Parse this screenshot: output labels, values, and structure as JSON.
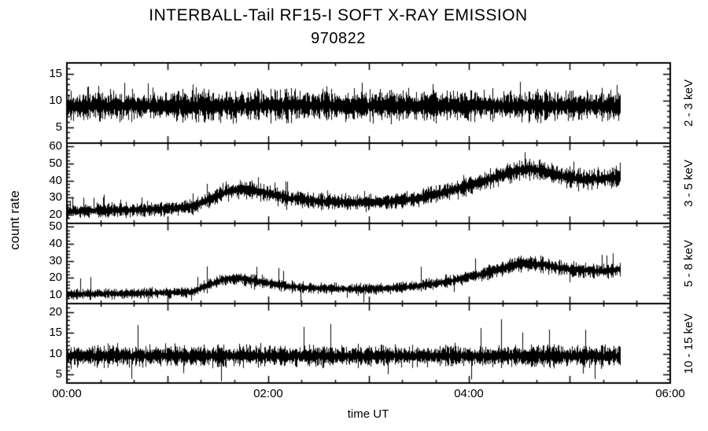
{
  "title": {
    "line1": "INTERBALL-Tail RF15-I SOFT X-RAY EMISSION",
    "line2": "970822"
  },
  "axes": {
    "ylabel": "count rate",
    "xlabel": "time UT",
    "x_range_hours": [
      0,
      6
    ],
    "x_labeled_hours": [
      0,
      2,
      4,
      6
    ],
    "x_tick_labels": [
      "00:00",
      "02:00",
      "04:00",
      "06:00"
    ],
    "data_x_range_hours": [
      0,
      5.5
    ]
  },
  "chart_data": [
    {
      "type": "line",
      "name": "2 - 3 keV count rate",
      "band": "2 - 3 keV",
      "ylim": [
        2,
        17
      ],
      "yticks": [
        5,
        10,
        15
      ],
      "mean_profile": {
        "t_hours": [
          0,
          5.5
        ],
        "value": [
          9,
          9
        ]
      },
      "noise_amp": 3.5,
      "amp_rel": 0,
      "spike_prob": 0.04,
      "spike_amp": 4.5,
      "seed": 11
    },
    {
      "type": "line",
      "name": "3 - 5 keV count rate",
      "band": "3 - 5 keV",
      "ylim": [
        15,
        62
      ],
      "yticks": [
        20,
        30,
        40,
        50,
        60
      ],
      "mean_profile": {
        "t_hours": [
          0,
          0.7,
          1.1,
          1.25,
          1.45,
          1.6,
          1.75,
          1.95,
          2.2,
          2.5,
          2.9,
          3.2,
          3.5,
          3.8,
          4.1,
          4.35,
          4.55,
          4.7,
          4.9,
          5.1,
          5.3,
          5.5
        ],
        "value": [
          22,
          23,
          24,
          25,
          30,
          34,
          35,
          33,
          30,
          28,
          27,
          28,
          30,
          34,
          39,
          44,
          47,
          46,
          43,
          41,
          41,
          42
        ]
      },
      "noise_amp": 3,
      "amp_rel": 0.1,
      "spike_prob": 0.03,
      "spike_amp": 10,
      "seed": 22
    },
    {
      "type": "line",
      "name": "5 - 8 keV count rate",
      "band": "5 - 8 keV",
      "ylim": [
        5,
        52
      ],
      "yticks": [
        10,
        20,
        30,
        40,
        50
      ],
      "mean_profile": {
        "t_hours": [
          0,
          0.7,
          1.1,
          1.25,
          1.4,
          1.55,
          1.7,
          1.9,
          2.2,
          2.5,
          2.9,
          3.2,
          3.5,
          3.8,
          4.1,
          4.35,
          4.55,
          4.7,
          4.9,
          5.1,
          5.3,
          5.5
        ],
        "value": [
          10.5,
          11,
          11.5,
          12,
          16,
          19,
          20,
          18,
          15,
          14,
          13.5,
          14,
          15.5,
          18,
          22,
          26,
          29,
          28,
          26,
          24.5,
          24,
          25
        ]
      },
      "noise_amp": 2.5,
      "amp_rel": 0.12,
      "spike_prob": 0.025,
      "spike_amp": 12,
      "seed": 33
    },
    {
      "type": "line",
      "name": "10 - 15 keV count rate",
      "band": "10 - 15 keV",
      "ylim": [
        3,
        22
      ],
      "yticks": [
        5,
        10,
        15,
        20
      ],
      "mean_profile": {
        "t_hours": [
          0,
          5.5
        ],
        "value": [
          9.5,
          9.5
        ]
      },
      "noise_amp": 3.2,
      "amp_rel": 0,
      "spike_prob": 0.015,
      "spike_amp": 9,
      "seed": 44
    }
  ]
}
